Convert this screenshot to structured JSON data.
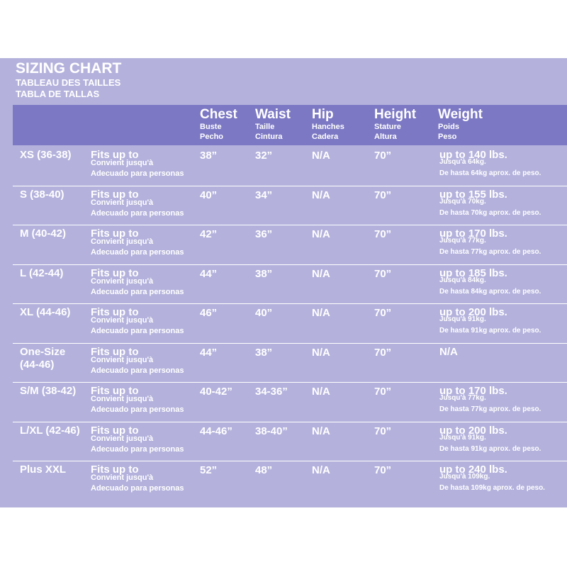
{
  "title": {
    "line1": "SIZING CHART",
    "line2": "TABLEAU DES TAILLES",
    "line3": "TABLA DE TALLAS"
  },
  "header": [
    {
      "main": "Chest",
      "sub": [
        "Buste",
        "Pecho"
      ]
    },
    {
      "main": "Waist",
      "sub": [
        "Taille",
        "Cintura"
      ]
    },
    {
      "main": "Hip",
      "sub": [
        "Hanches",
        "Cadera"
      ]
    },
    {
      "main": "Height",
      "sub": [
        "Stature",
        "Altura"
      ]
    },
    {
      "main": "Weight",
      "sub": [
        "Poids",
        "Peso"
      ]
    }
  ],
  "rows": [
    {
      "size": [
        "XS (36-38)"
      ],
      "fits": [
        "Fits up to",
        "Convient jusqu'à",
        "Adecuado para personas"
      ],
      "chest": "38”",
      "waist": "32”",
      "hip": "N/A",
      "height": "70”",
      "weight": [
        "up to 140 lbs.",
        "Jusqu'à 64kg.",
        "De hasta 64kg aprox. de peso."
      ]
    },
    {
      "size": [
        "S (38-40)"
      ],
      "fits": [
        "Fits up to",
        "Convient jusqu'à",
        "Adecuado para personas"
      ],
      "chest": "40”",
      "waist": "34”",
      "hip": "N/A",
      "height": "70”",
      "weight": [
        "up to 155 lbs.",
        "Jusqu'à 70kg.",
        "De hasta 70kg aprox. de peso."
      ]
    },
    {
      "size": [
        "M (40-42)"
      ],
      "fits": [
        "Fits up to",
        "Convient jusqu'à",
        "Adecuado para personas"
      ],
      "chest": "42”",
      "waist": "36”",
      "hip": "N/A",
      "height": "70”",
      "weight": [
        "up to 170 lbs.",
        "Jusqu'à 77kg.",
        "De hasta 77kg aprox. de peso."
      ]
    },
    {
      "size": [
        "L (42-44)"
      ],
      "fits": [
        "Fits up to",
        "Convient jusqu'à",
        "Adecuado para personas"
      ],
      "chest": "44”",
      "waist": "38”",
      "hip": "N/A",
      "height": "70”",
      "weight": [
        "up to 185 lbs.",
        "Jusqu'à 84kg.",
        "De hasta 84kg aprox. de peso."
      ]
    },
    {
      "size": [
        "XL (44-46)"
      ],
      "fits": [
        "Fits up to",
        "Convient jusqu'à",
        "Adecuado para personas"
      ],
      "chest": "46”",
      "waist": "40”",
      "hip": "N/A",
      "height": "70”",
      "weight": [
        "up to 200 lbs.",
        "Jusqu'à 91kg.",
        "De hasta 91kg aprox. de peso."
      ]
    },
    {
      "size": [
        "One-Size",
        "(44-46)"
      ],
      "fits": [
        "Fits up to",
        "Convient jusqu'à",
        "Adecuado para personas"
      ],
      "chest": "44”",
      "waist": "38”",
      "hip": "N/A",
      "height": "70”",
      "weight": [
        "N/A"
      ]
    },
    {
      "size": [
        "S/M (38-42)"
      ],
      "fits": [
        "Fits up to",
        "Convient jusqu'à",
        "Adecuado para personas"
      ],
      "chest": "40-42”",
      "waist": "34-36”",
      "hip": "N/A",
      "height": "70”",
      "weight": [
        "up to 170 lbs.",
        "Jusqu'à 77kg.",
        "De hasta 77kg aprox. de peso."
      ]
    },
    {
      "size": [
        "L/XL (42-46)"
      ],
      "fits": [
        "Fits up to",
        "Convient jusqu'à",
        "Adecuado para personas"
      ],
      "chest": "44-46”",
      "waist": "38-40”",
      "hip": "N/A",
      "height": "70”",
      "weight": [
        "up to 200 lbs.",
        "Jusqu'à 91kg.",
        "De hasta 91kg aprox. de peso."
      ]
    },
    {
      "size": [
        "Plus XXL"
      ],
      "fits": [
        "Fits up to",
        "Convient jusqu'à",
        "Adecuado para personas"
      ],
      "chest": "52”",
      "waist": "48”",
      "hip": "N/A",
      "height": "70”",
      "weight": [
        "up to 240 lbs.",
        "Jusqu'à 109kg.",
        "De hasta 109kg aprox. de peso."
      ]
    }
  ]
}
